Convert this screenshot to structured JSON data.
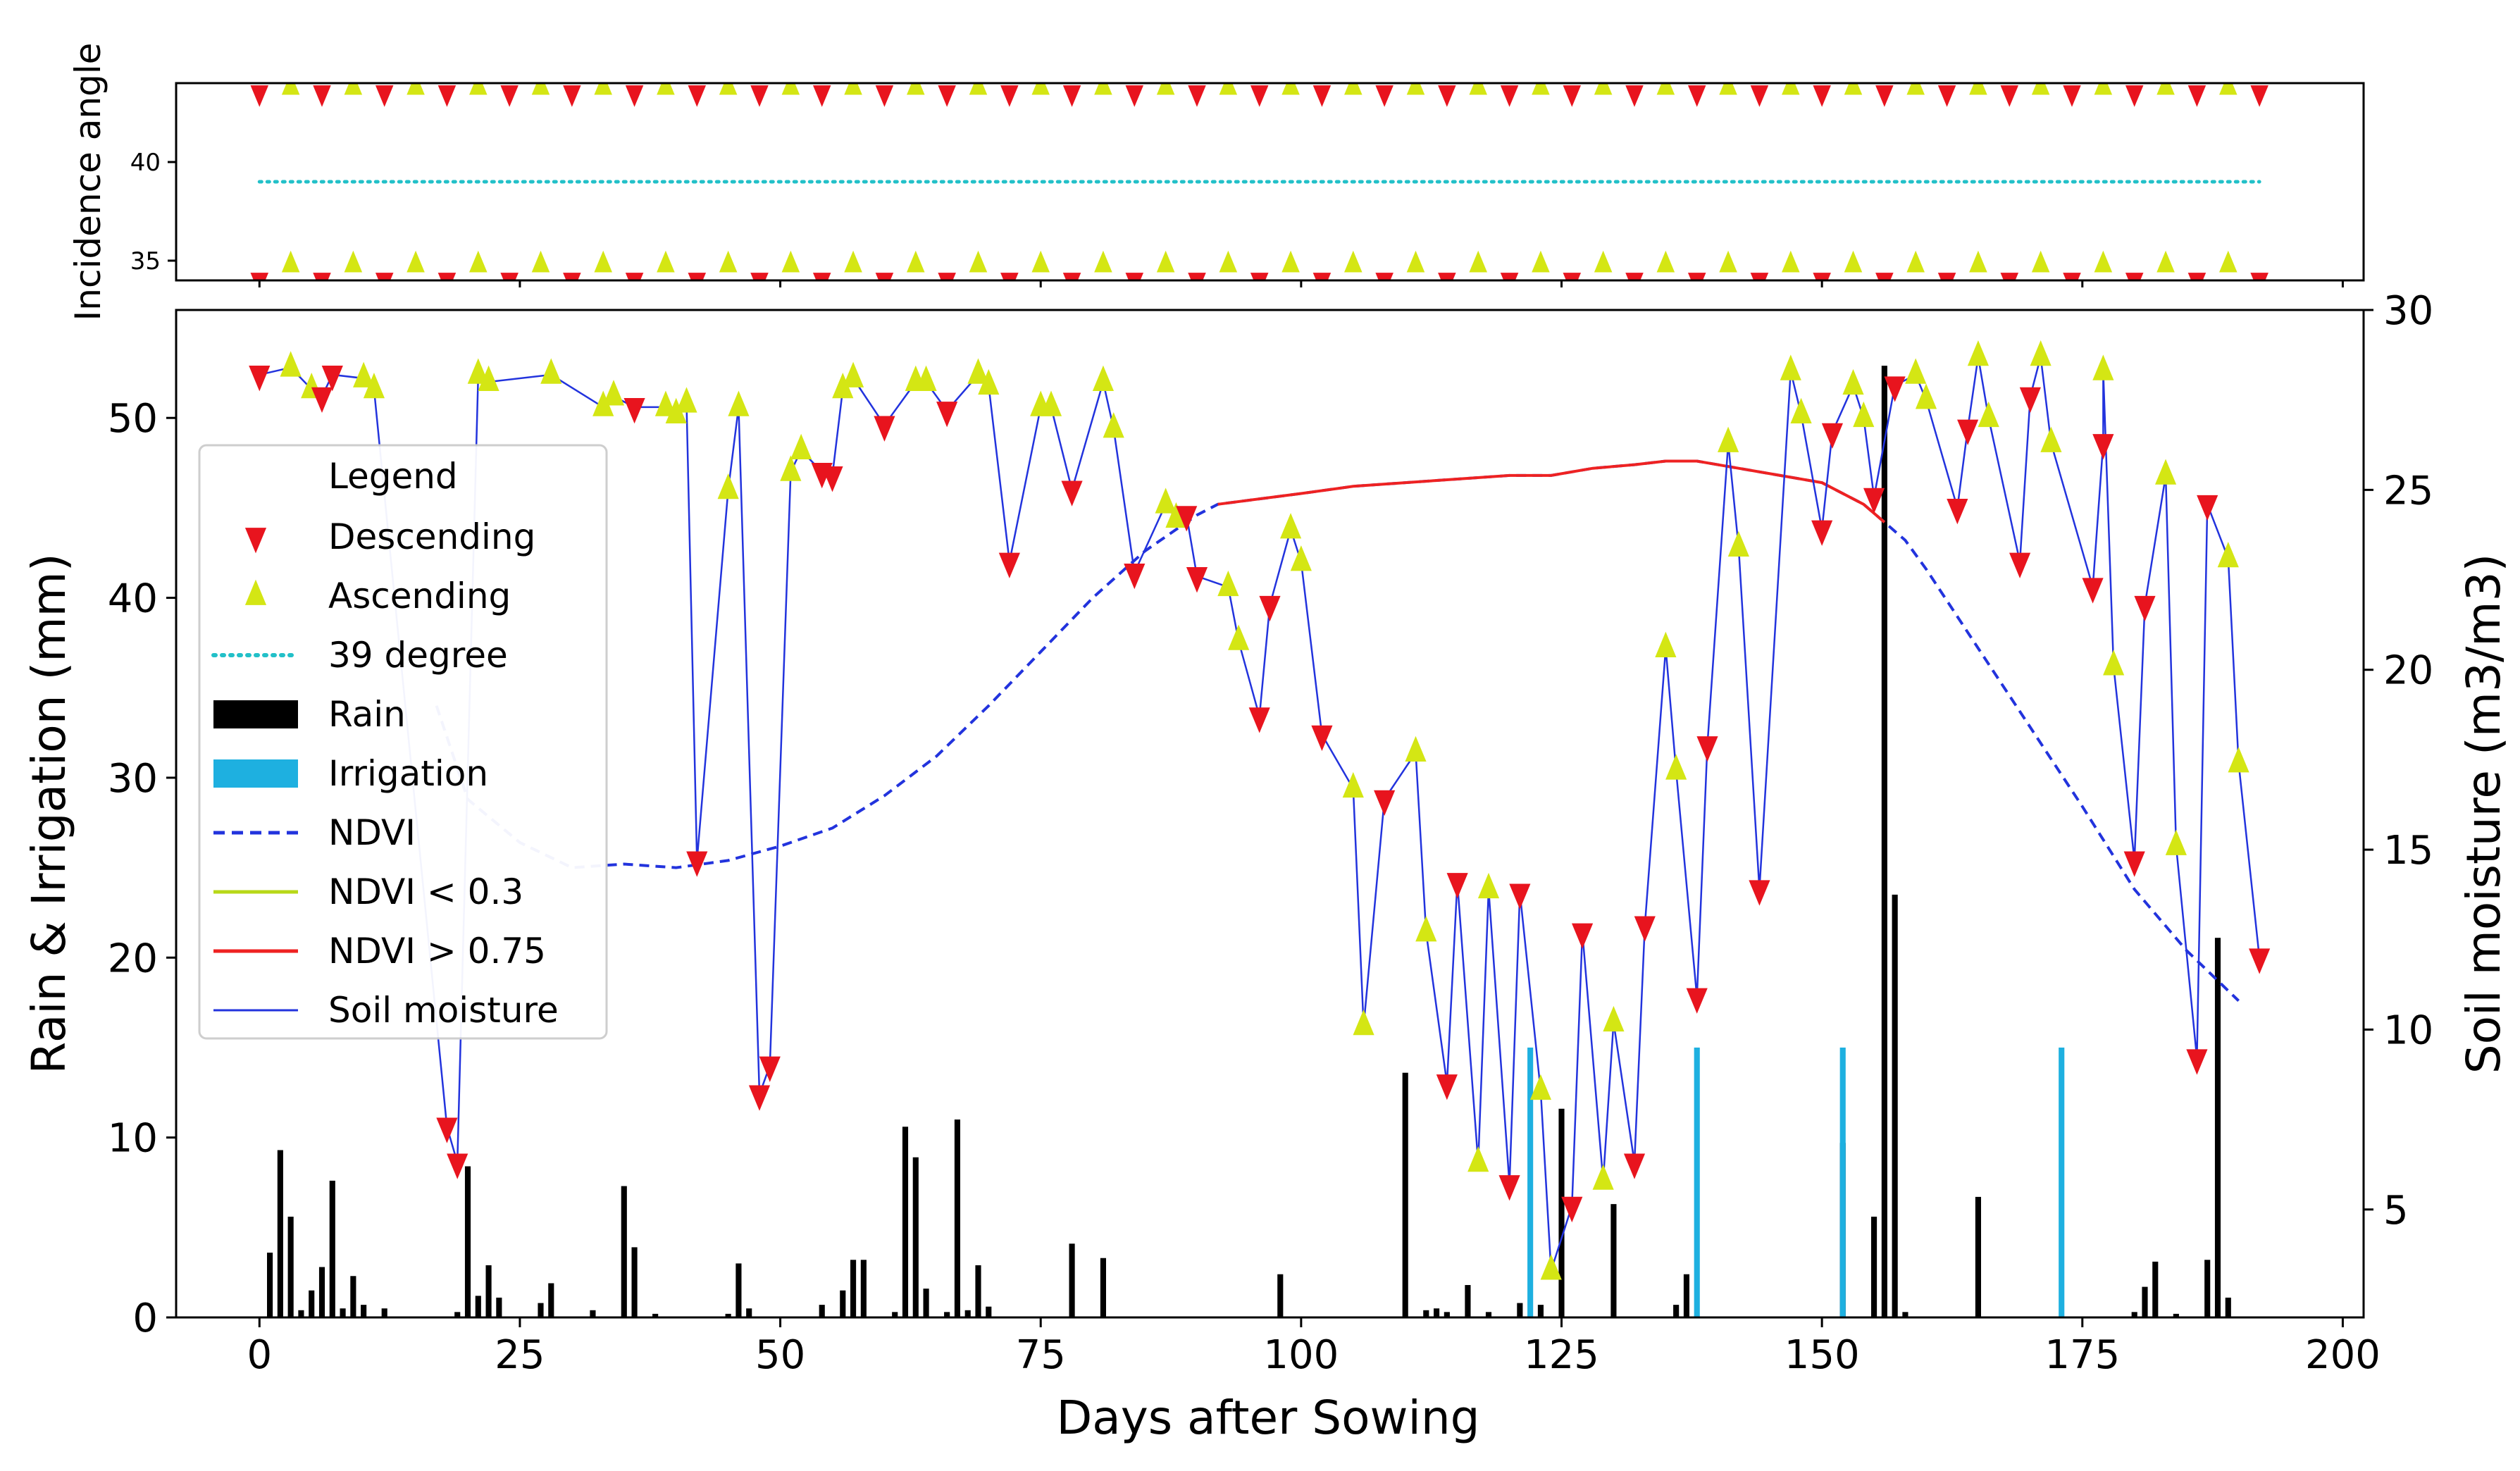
{
  "chart_data": [
    {
      "type": "scatter",
      "panel": "top",
      "ylabel": "Incidence angle",
      "ylim": [
        34,
        44
      ],
      "yticks": [
        35,
        40
      ],
      "xlim": [
        -8,
        202
      ],
      "reference_line": {
        "name": "39 degree",
        "value": 39,
        "color": "#22c0c8"
      },
      "descending": {
        "name": "Descending",
        "color": "#e8141e",
        "x_start": 0,
        "x_step": 6,
        "x_end": 192,
        "y_values": [
          34,
          43.5
        ]
      },
      "ascending": {
        "name": "Ascending",
        "color": "#d4e614",
        "x_start": 3,
        "x_step": 6,
        "x_end": 189,
        "y_values": [
          34.8,
          43.8
        ]
      }
    },
    {
      "type": "combo",
      "panel": "main",
      "xlabel": "Days after Sowing",
      "ylabel": "Rain & Irrigation (mm)",
      "ylabel_right": "Soil moisture (m3/m3)",
      "xlim": [
        -8,
        202
      ],
      "ylim": [
        0,
        56
      ],
      "ylim_right": [
        2,
        30
      ],
      "xticks": [
        0,
        25,
        50,
        75,
        100,
        125,
        150,
        175,
        200
      ],
      "yticks": [
        0,
        10,
        20,
        30,
        40,
        50
      ],
      "yticks_right": [
        5,
        10,
        15,
        20,
        25,
        30
      ],
      "legend": {
        "title": "Legend",
        "items": [
          {
            "label": "Descending",
            "kind": "marker-down",
            "color": "#e8141e"
          },
          {
            "label": "Ascending",
            "kind": "marker-up",
            "color": "#d4e614"
          },
          {
            "label": "39 degree",
            "kind": "dotted",
            "color": "#22c0c8"
          },
          {
            "label": "Rain",
            "kind": "bar",
            "color": "#000000"
          },
          {
            "label": "Irrigation",
            "kind": "bar",
            "color": "#1eb0e0"
          },
          {
            "label": "NDVI",
            "kind": "dashed",
            "color": "#2233dd"
          },
          {
            "label": "NDVI < 0.3",
            "kind": "line",
            "color": "#b8d818"
          },
          {
            "label": "NDVI > 0.75",
            "kind": "line",
            "color": "#ee2222"
          },
          {
            "label": "Soil moisture",
            "kind": "thin",
            "color": "#2233dd"
          }
        ]
      },
      "rain": {
        "name": "Rain",
        "color": "#000000",
        "points": [
          [
            1,
            3.6
          ],
          [
            2,
            9.3
          ],
          [
            3,
            5.6
          ],
          [
            4,
            0.4
          ],
          [
            5,
            1.5
          ],
          [
            6,
            2.8
          ],
          [
            7,
            7.6
          ],
          [
            8,
            0.5
          ],
          [
            9,
            2.3
          ],
          [
            10,
            0.7
          ],
          [
            12,
            0.5
          ],
          [
            19,
            0.3
          ],
          [
            20,
            8.4
          ],
          [
            21,
            1.2
          ],
          [
            22,
            2.9
          ],
          [
            23,
            1.1
          ],
          [
            27,
            0.8
          ],
          [
            28,
            1.9
          ],
          [
            32,
            0.4
          ],
          [
            35,
            7.3
          ],
          [
            36,
            3.9
          ],
          [
            38,
            0.2
          ],
          [
            45,
            0.2
          ],
          [
            46,
            3.0
          ],
          [
            47,
            0.5
          ],
          [
            54,
            0.7
          ],
          [
            56,
            1.5
          ],
          [
            57,
            3.2
          ],
          [
            58,
            3.2
          ],
          [
            61,
            0.3
          ],
          [
            62,
            10.6
          ],
          [
            63,
            8.9
          ],
          [
            64,
            1.6
          ],
          [
            66,
            0.3
          ],
          [
            67,
            11.0
          ],
          [
            68,
            0.4
          ],
          [
            69,
            2.9
          ],
          [
            70,
            0.6
          ],
          [
            78,
            4.1
          ],
          [
            81,
            3.3
          ],
          [
            98,
            2.4
          ],
          [
            110,
            13.6
          ],
          [
            112,
            0.4
          ],
          [
            113,
            0.5
          ],
          [
            114,
            0.3
          ],
          [
            116,
            1.8
          ],
          [
            118,
            0.3
          ],
          [
            121,
            0.8
          ],
          [
            123,
            0.7
          ],
          [
            125,
            11.6
          ],
          [
            130,
            6.3
          ],
          [
            136,
            0.7
          ],
          [
            137,
            2.4
          ],
          [
            152,
            9.7
          ],
          [
            155,
            5.6
          ],
          [
            156,
            52.9
          ],
          [
            157,
            23.5
          ],
          [
            158,
            0.3
          ],
          [
            165,
            6.7
          ],
          [
            180,
            0.3
          ],
          [
            181,
            1.7
          ],
          [
            182,
            3.1
          ],
          [
            184,
            0.2
          ],
          [
            187,
            3.2
          ],
          [
            188,
            21.1
          ],
          [
            189,
            1.1
          ]
        ]
      },
      "irrigation": {
        "name": "Irrigation",
        "color": "#1eb0e0",
        "points": [
          [
            122,
            15
          ],
          [
            138,
            15
          ],
          [
            152,
            15
          ],
          [
            173,
            15
          ]
        ]
      },
      "ndvi": {
        "name": "NDVI",
        "x": [
          17,
          20,
          25,
          30,
          35,
          40,
          45,
          50,
          55,
          60,
          65,
          70,
          75,
          80,
          85,
          90,
          92,
          100,
          105,
          110,
          115,
          120,
          124,
          128,
          132,
          135,
          138,
          142,
          146,
          150,
          154,
          156,
          158,
          160,
          165,
          170,
          175,
          180,
          185,
          190
        ],
        "y": [
          19,
          16.4,
          15.2,
          14.5,
          14.6,
          14.5,
          14.7,
          15.1,
          15.6,
          16.5,
          17.6,
          19.0,
          20.5,
          22.0,
          23.3,
          24.3,
          24.6,
          24.9,
          25.1,
          25.2,
          25.3,
          25.4,
          25.4,
          25.6,
          25.7,
          25.8,
          25.8,
          25.6,
          25.4,
          25.2,
          24.6,
          24.1,
          23.6,
          22.8,
          20.6,
          18.4,
          16.2,
          13.9,
          12.2,
          10.8
        ],
        "segment_under_0.3": {
          "name": "NDVI < 0.3",
          "x_range": [
            0,
            17
          ]
        },
        "segment_over_0.75": {
          "name": "NDVI > 0.75",
          "x_range": [
            92,
            156
          ]
        }
      },
      "soil_moisture": {
        "name": "Soil moisture",
        "color": "#2233dd",
        "descending": [
          [
            0,
            28.2
          ],
          [
            6,
            27.6
          ],
          [
            7,
            28.2
          ],
          [
            18,
            7.3
          ],
          [
            19,
            6.3
          ],
          [
            36,
            27.3
          ],
          [
            42,
            14.7
          ],
          [
            48,
            8.2
          ],
          [
            49,
            9.0
          ],
          [
            54,
            25.5
          ],
          [
            55,
            25.4
          ],
          [
            60,
            26.8
          ],
          [
            66,
            27.2
          ],
          [
            72,
            23.0
          ],
          [
            78,
            25.0
          ],
          [
            84,
            22.7
          ],
          [
            89,
            24.3
          ],
          [
            90,
            22.6
          ],
          [
            96,
            18.7
          ],
          [
            97,
            21.8
          ],
          [
            102,
            18.2
          ],
          [
            108,
            16.4
          ],
          [
            114,
            8.5
          ],
          [
            115,
            14.1
          ],
          [
            120,
            5.7
          ],
          [
            121,
            13.8
          ],
          [
            126,
            5.1
          ],
          [
            127,
            12.7
          ],
          [
            132,
            6.3
          ],
          [
            133,
            12.9
          ],
          [
            138,
            10.9
          ],
          [
            139,
            17.9
          ],
          [
            144,
            13.9
          ],
          [
            150,
            23.9
          ],
          [
            151,
            26.6
          ],
          [
            155,
            24.8
          ],
          [
            157,
            27.9
          ],
          [
            163,
            24.5
          ],
          [
            164,
            26.7
          ],
          [
            169,
            23.0
          ],
          [
            170,
            27.6
          ],
          [
            176,
            22.3
          ],
          [
            177,
            26.3
          ],
          [
            180,
            14.7
          ],
          [
            181,
            21.8
          ],
          [
            186,
            9.2
          ],
          [
            187,
            24.6
          ],
          [
            192,
            12.0
          ]
        ],
        "ascending": [
          [
            3,
            28.4
          ],
          [
            5,
            27.8
          ],
          [
            10,
            28.1
          ],
          [
            11,
            27.8
          ],
          [
            21,
            28.2
          ],
          [
            22,
            28.0
          ],
          [
            28,
            28.2
          ],
          [
            33,
            27.3
          ],
          [
            34,
            27.6
          ],
          [
            39,
            27.3
          ],
          [
            40,
            27.1
          ],
          [
            41,
            27.4
          ],
          [
            45,
            25.0
          ],
          [
            46,
            27.3
          ],
          [
            51,
            25.5
          ],
          [
            52,
            26.1
          ],
          [
            56,
            27.8
          ],
          [
            57,
            28.1
          ],
          [
            63,
            28.0
          ],
          [
            64,
            28.0
          ],
          [
            69,
            28.2
          ],
          [
            70,
            27.9
          ],
          [
            75,
            27.3
          ],
          [
            76,
            27.3
          ],
          [
            81,
            28.0
          ],
          [
            82,
            26.7
          ],
          [
            87,
            24.6
          ],
          [
            88,
            24.2
          ],
          [
            93,
            22.3
          ],
          [
            94,
            20.8
          ],
          [
            99,
            23.9
          ],
          [
            100,
            23.0
          ],
          [
            105,
            16.7
          ],
          [
            106,
            10.1
          ],
          [
            111,
            17.7
          ],
          [
            112,
            12.7
          ],
          [
            117,
            6.3
          ],
          [
            118,
            13.9
          ],
          [
            123,
            8.3
          ],
          [
            124,
            3.3
          ],
          [
            129,
            5.8
          ],
          [
            130,
            10.2
          ],
          [
            135,
            20.6
          ],
          [
            136,
            17.2
          ],
          [
            141,
            26.3
          ],
          [
            142,
            23.4
          ],
          [
            147,
            28.3
          ],
          [
            148,
            27.1
          ],
          [
            153,
            27.9
          ],
          [
            154,
            27.0
          ],
          [
            159,
            28.2
          ],
          [
            160,
            27.5
          ],
          [
            165,
            28.7
          ],
          [
            166,
            27.0
          ],
          [
            171,
            28.7
          ],
          [
            172,
            26.3
          ],
          [
            177,
            28.3
          ],
          [
            178,
            20.1
          ],
          [
            183,
            25.4
          ],
          [
            184,
            15.1
          ],
          [
            189,
            23.1
          ],
          [
            190,
            17.4
          ]
        ]
      }
    }
  ]
}
